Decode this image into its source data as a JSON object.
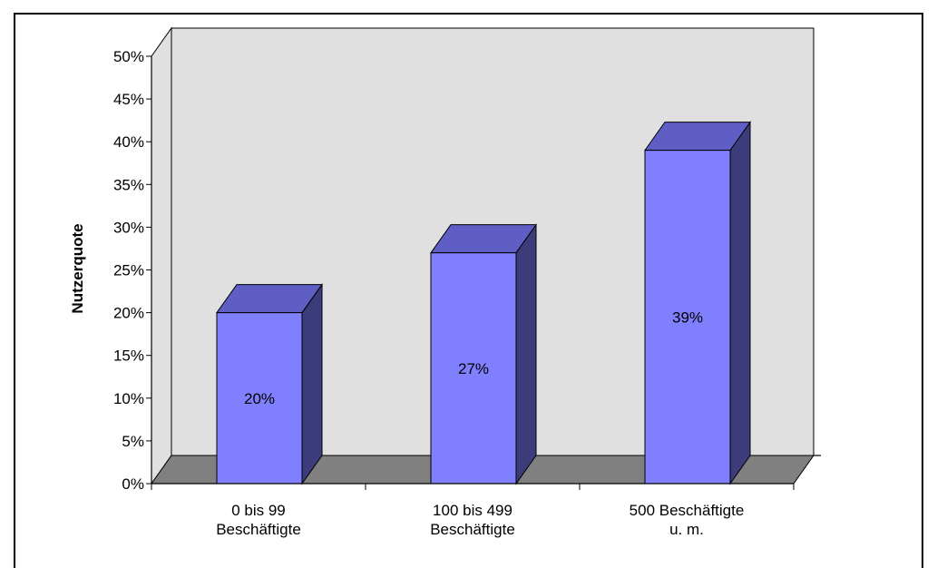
{
  "chart_data": {
    "type": "bar",
    "style": "3d-column",
    "categories": [
      [
        "0 bis 99",
        "Beschäftigte"
      ],
      [
        "100 bis 499",
        "Beschäftigte"
      ],
      [
        "500 Beschäftigte",
        "u. m."
      ]
    ],
    "values": [
      20,
      27,
      39
    ],
    "data_labels": [
      "20%",
      "27%",
      "39%"
    ],
    "title": "",
    "xlabel": "",
    "ylabel": "Nutzerquote",
    "ylim": [
      0,
      50
    ],
    "y_ticks": [
      "0%",
      "5%",
      "10%",
      "15%",
      "20%",
      "25%",
      "30%",
      "35%",
      "40%",
      "45%",
      "50%"
    ],
    "grid": false,
    "legend": "none"
  },
  "colors": {
    "bar_front": "#8080ff",
    "bar_top": "#5e5ec4",
    "bar_side": "#3c3c7a",
    "wall": "#e0e0e0",
    "floor": "#808080",
    "outline": "#000000"
  }
}
